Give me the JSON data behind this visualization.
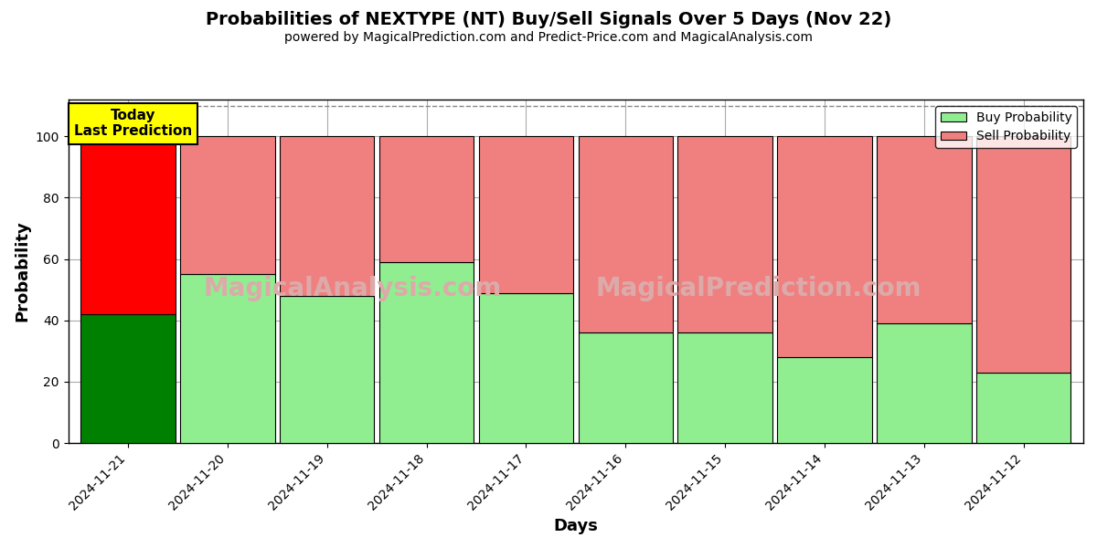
{
  "title": "Probabilities of NEXTYPE (NT) Buy/Sell Signals Over 5 Days (Nov 22)",
  "subtitle": "powered by MagicalPrediction.com and Predict-Price.com and MagicalAnalysis.com",
  "days": [
    "2024-11-21",
    "2024-11-20",
    "2024-11-19",
    "2024-11-18",
    "2024-11-17",
    "2024-11-16",
    "2024-11-15",
    "2024-11-14",
    "2024-11-13",
    "2024-11-12"
  ],
  "buy_probs": [
    42,
    55,
    48,
    59,
    49,
    36,
    36,
    28,
    39,
    23
  ],
  "sell_probs": [
    58,
    45,
    52,
    41,
    51,
    64,
    64,
    72,
    61,
    77
  ],
  "today_buy_color": "#008000",
  "today_sell_color": "#ff0000",
  "other_buy_color": "#90EE90",
  "other_sell_color": "#F08080",
  "bar_edge_color": "#000000",
  "ylabel": "Probability",
  "xlabel": "Days",
  "ylim_max": 112,
  "yticks": [
    0,
    20,
    40,
    60,
    80,
    100
  ],
  "grid_color": "#aaaaaa",
  "watermark_texts": [
    "MagicalAnalysis.com",
    "MagicalPrediction.com"
  ],
  "watermark_color": "#ddaaaa",
  "annotation_text": "Today\nLast Prediction",
  "annotation_bg": "#ffff00",
  "dashed_line_y": 110,
  "dashed_line_color": "#888888",
  "bar_width": 0.95
}
